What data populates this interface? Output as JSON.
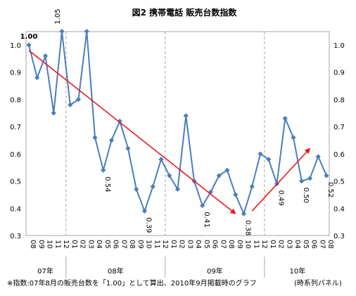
{
  "chart_data": {
    "type": "line",
    "title": "図2 携帯電話 販売台数指数",
    "x": [
      "08",
      "09",
      "10",
      "11",
      "12",
      "01",
      "02",
      "03",
      "04",
      "05",
      "06",
      "07",
      "08",
      "09",
      "10",
      "11",
      "12",
      "01",
      "02",
      "03",
      "04",
      "05",
      "06",
      "07",
      "08",
      "09",
      "10",
      "11",
      "12",
      "01",
      "02",
      "03",
      "04",
      "05",
      "06",
      "07",
      "08"
    ],
    "year_groups": [
      {
        "label": "07年",
        "start": 0,
        "end": 4
      },
      {
        "label": "08年",
        "start": 5,
        "end": 16
      },
      {
        "label": "09年",
        "start": 17,
        "end": 28
      },
      {
        "label": "10年",
        "start": 29,
        "end": 36
      }
    ],
    "series": [
      {
        "values": [
          1.0,
          0.88,
          0.96,
          0.75,
          1.05,
          0.78,
          0.8,
          1.05,
          0.66,
          0.54,
          0.65,
          0.72,
          0.62,
          0.47,
          0.39,
          0.48,
          0.58,
          0.52,
          0.47,
          0.74,
          0.5,
          0.41,
          0.46,
          0.52,
          0.54,
          0.45,
          0.38,
          0.48,
          0.6,
          0.58,
          0.49,
          0.73,
          0.66,
          0.5,
          0.51,
          0.59,
          0.52
        ]
      }
    ],
    "data_labels": [
      {
        "index": 0,
        "text": "1.00"
      },
      {
        "index": 4,
        "text": "1.05"
      },
      {
        "index": 9,
        "text": "0.54"
      },
      {
        "index": 14,
        "text": "0.39"
      },
      {
        "index": 21,
        "text": "0.41"
      },
      {
        "index": 26,
        "text": "0.38"
      },
      {
        "index": 30,
        "text": "0.49"
      },
      {
        "index": 33,
        "text": "0.50"
      },
      {
        "index": 36,
        "text": "0.52"
      }
    ],
    "ylim": [
      0.3,
      1.0
    ],
    "yticks": [
      "0.3",
      "0.4",
      "0.5",
      "0.6",
      "0.7",
      "0.8",
      "0.9",
      "1.0"
    ],
    "trend_arrows": [
      {
        "from": [
          0,
          0.98
        ],
        "to": [
          25,
          0.38
        ]
      },
      {
        "from": [
          27,
          0.39
        ],
        "to": [
          34,
          0.62
        ]
      }
    ],
    "colors": {
      "line": "#4a7ebb",
      "arrow": "#e8191f",
      "grid": "#a6a6a6"
    }
  },
  "footnote": {
    "left": "※指数:07年8月の販売台数を「1.00」として算出、2010年9月掲載時のグラフ",
    "right": "(時系列パネル)"
  }
}
